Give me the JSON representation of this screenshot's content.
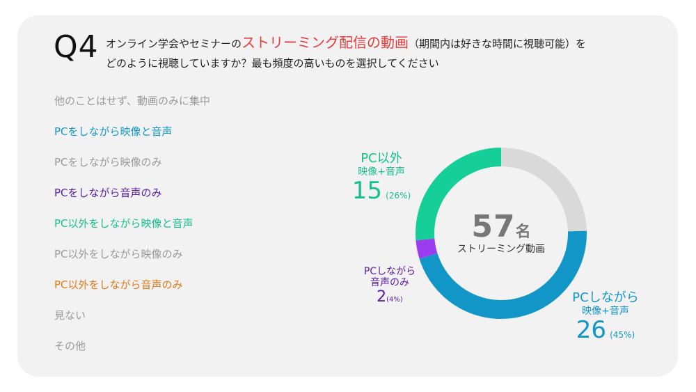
{
  "question": {
    "number": "Q4",
    "text_before": "オンライン学会やセミナーの",
    "highlight": "ストリーミング配信の動画",
    "text_after": "（期間内は好きな時間に視聴可能）を",
    "line2": "どのように視聴していますか？最も頻度の高いものを選択してください"
  },
  "options": [
    {
      "label": "他のことはせず、動画のみに集中",
      "color": "#999999"
    },
    {
      "label": "PCをしながら映像と音声",
      "color": "#1296c8"
    },
    {
      "label": "PCをしながら映像のみ",
      "color": "#999999"
    },
    {
      "label": "PCをしながら音声のみ",
      "color": "#5a1aa8"
    },
    {
      "label": "PC以外をしながら映像と音声",
      "color": "#16c08e"
    },
    {
      "label": "PC以外をしながら映像のみ",
      "color": "#999999"
    },
    {
      "label": "PC以外をしながら音声のみ",
      "color": "#e07a1a"
    },
    {
      "label": "見ない",
      "color": "#999999"
    },
    {
      "label": "その他",
      "color": "#999999"
    }
  ],
  "chart_data": {
    "type": "pie",
    "donut": true,
    "total": {
      "value": "57",
      "unit": "名",
      "label": "ストリーミング動画"
    },
    "series": [
      {
        "label_line1": "PCしながら",
        "label_line2": "映像+音声",
        "value": 26,
        "percent": "(45%)",
        "color": "#1296c8"
      },
      {
        "label_line1": "PCしながら",
        "label_line2": "音声のみ",
        "value": 2,
        "percent": "(4%)",
        "color": "#9b3cf0",
        "label_color": "#5a1aa8"
      },
      {
        "label_line1": "PC以外",
        "label_line2": "映像+音声",
        "value": 15,
        "percent": "(26%)",
        "color": "#16cf98",
        "label_color": "#16c08e"
      },
      {
        "value": 14,
        "color": "#d9d9d9"
      }
    ]
  }
}
